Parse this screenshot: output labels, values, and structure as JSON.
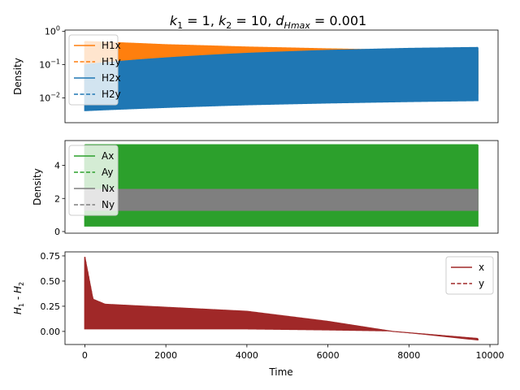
{
  "chart_data": {
    "type": "line",
    "title": {
      "k1_label": "k",
      "k1_sub": "1",
      "k1_value": " =  1, ",
      "k2_label": "k",
      "k2_sub": "2",
      "k2_value": " =  10, ",
      "d_label": "d",
      "d_sub": "Hmax",
      "d_value": " =  0.001"
    },
    "x": {
      "label": "Time",
      "ticks": [
        0,
        2000,
        4000,
        6000,
        8000,
        10000
      ],
      "lim": [
        -490,
        10200
      ]
    },
    "time_end": 9700,
    "panels": [
      {
        "ylabel": "Density",
        "yscale": "log",
        "ylim": [
          0.0018,
          1.1
        ],
        "yticks": [
          {
            "value": 0.01,
            "base": "10",
            "exp": "−2"
          },
          {
            "value": 0.1,
            "base": "10",
            "exp": "−1"
          },
          {
            "value": 1,
            "base": "10",
            "exp": "0"
          }
        ],
        "legend_position": "upper-left",
        "series": [
          {
            "name": "H1x",
            "color": "#ff7f0e",
            "style": "solid"
          },
          {
            "name": "H1y",
            "color": "#ff7f0e",
            "style": "dashed"
          },
          {
            "name": "H2x",
            "color": "#1f77b4",
            "style": "solid"
          },
          {
            "name": "H2y",
            "color": "#1f77b4",
            "style": "dashed"
          }
        ],
        "bands": [
          {
            "series": "H1",
            "t": [
              0,
              2000,
              4000,
              6000,
              8000,
              9700
            ],
            "upper": [
              0.5,
              0.4,
              0.34,
              0.3,
              0.27,
              0.26
            ],
            "lower": [
              0.015,
              0.015,
              0.014,
              0.013,
              0.013,
              0.013
            ]
          },
          {
            "series": "H2",
            "t": [
              0,
              2000,
              4000,
              6000,
              8000,
              9700
            ],
            "upper": [
              0.1,
              0.16,
              0.22,
              0.27,
              0.31,
              0.33
            ],
            "lower": [
              0.004,
              0.005,
              0.006,
              0.0068,
              0.0075,
              0.008
            ]
          }
        ]
      },
      {
        "ylabel": "Density",
        "yscale": "linear",
        "ylim": [
          -0.1,
          5.5
        ],
        "yticks": [
          0,
          2,
          4
        ],
        "legend_position": "upper-left",
        "series": [
          {
            "name": "Ax",
            "color": "#2ca02c",
            "style": "solid"
          },
          {
            "name": "Ay",
            "color": "#2ca02c",
            "style": "dashed"
          },
          {
            "name": "Nx",
            "color": "#7f7f7f",
            "style": "solid"
          },
          {
            "name": "Ny",
            "color": "#7f7f7f",
            "style": "dashed"
          }
        ],
        "bands": [
          {
            "series": "A",
            "t": [
              0,
              9700
            ],
            "upper": [
              5.25,
              5.25
            ],
            "lower": [
              0.3,
              0.3
            ]
          },
          {
            "series": "N",
            "t": [
              0,
              9700
            ],
            "upper": [
              2.55,
              2.55
            ],
            "lower": [
              1.25,
              1.25
            ]
          }
        ]
      },
      {
        "ylabel": "H1 - H2",
        "ylabel_parts": {
          "a": "H",
          "a_sub": "1",
          "mid": " - ",
          "b": "H",
          "b_sub": "2"
        },
        "yscale": "linear",
        "ylim": [
          -0.13,
          0.79
        ],
        "yticks": [
          0.0,
          0.25,
          0.5,
          0.75
        ],
        "ytick_labels": [
          "0.00",
          "0.25",
          "0.50",
          "0.75"
        ],
        "legend_position": "upper-right",
        "series": [
          {
            "name": "x",
            "color": "#a02828",
            "style": "solid"
          },
          {
            "name": "y",
            "color": "#a02828",
            "style": "dashed"
          }
        ],
        "bands": [
          {
            "series": "diff",
            "t": [
              0,
              200,
              500,
              2000,
              4000,
              6000,
              7600,
              9700
            ],
            "upper": [
              0.74,
              0.32,
              0.27,
              0.24,
              0.2,
              0.1,
              0.0,
              -0.07
            ],
            "lower": [
              0.02,
              0.02,
              0.02,
              0.02,
              0.02,
              0.01,
              0.0,
              -0.09
            ]
          }
        ]
      }
    ]
  }
}
